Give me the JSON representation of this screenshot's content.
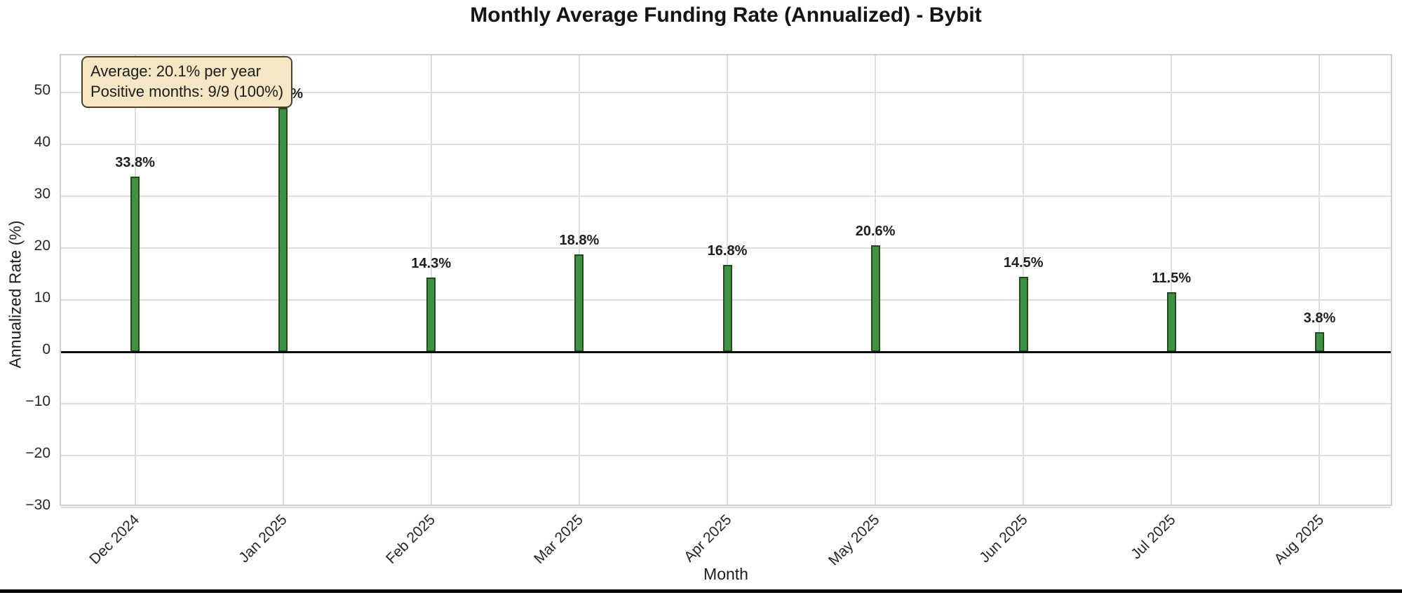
{
  "chart_data": {
    "type": "bar",
    "title": "Monthly Average Funding Rate (Annualized) - Bybit",
    "xlabel": "Month",
    "ylabel": "Annualized Rate (%)",
    "categories": [
      "Dec 2024",
      "Jan 2025",
      "Feb 2025",
      "Mar 2025",
      "Apr 2025",
      "May 2025",
      "Jun 2025",
      "Jul 2025",
      "Aug 2025"
    ],
    "values": [
      33.8,
      47.1,
      14.3,
      18.8,
      16.8,
      20.6,
      14.5,
      11.5,
      3.8
    ],
    "bar_labels": [
      "33.8%",
      "47.1%",
      "14.3%",
      "18.8%",
      "16.8%",
      "20.6%",
      "14.5%",
      "11.5%",
      "3.8%"
    ],
    "ylim": [
      -30,
      57.2
    ],
    "yticks": [
      50,
      40,
      30,
      20,
      10,
      0,
      -10,
      -20,
      -30
    ],
    "ytick_labels": [
      "50",
      "40",
      "30",
      "20",
      "10",
      "0",
      "−10",
      "−20",
      "−30"
    ],
    "grid": true,
    "legend": "none",
    "zero_line": true,
    "bar_color": "#3e9242",
    "bar_edge_color": "#1b4d1d",
    "grid_color": "#dedede",
    "annotation": {
      "line1": "Average: 20.1% per year",
      "line2": "Positive months: 9/9 (100%)",
      "bg_color": "#f6e7c4",
      "border_color": "#4a3f28"
    }
  }
}
